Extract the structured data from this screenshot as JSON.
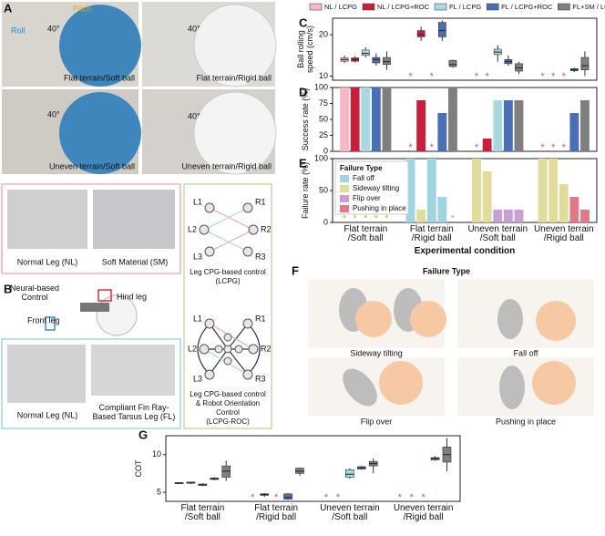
{
  "figure": {
    "panel_labels": [
      "A",
      "B",
      "C",
      "D",
      "E",
      "F",
      "G"
    ],
    "panel_a": {
      "pitch": "Pitch",
      "roll": "Roll",
      "angle": "40°",
      "photos": [
        "Flat terrain/Soft ball",
        "Flat terrain/Rigid ball",
        "Uneven terrain/Soft ball",
        "Uneven terrain/Rigid ball"
      ]
    },
    "panel_b": {
      "soft_photos": [
        "Normal Leg (NL)",
        "Soft Material (SM)"
      ],
      "control": "Neural-based\nControl",
      "hind_leg": "Hind leg",
      "front_leg": "Front leg",
      "leg_photos": [
        "Normal Leg (NL)",
        "Compliant Fin Ray-\nBased Tarsus Leg (FL)"
      ],
      "legs": [
        "L1",
        "R1",
        "L2",
        "R2",
        "L3",
        "R3"
      ],
      "lcpg": "Leg CPG-based control\n(LCPG)",
      "lcpg_roc": "Leg CPG-based control\n& Robot Orientation Control\n(LCPG-ROC)"
    },
    "panel_f": {
      "title": "Failure Type",
      "labels": [
        "Sideway tilting",
        "Fall off",
        "Flip over",
        "Pushing in place"
      ]
    }
  },
  "chart_data": [
    {
      "type": "box",
      "ylabel": "Ball rolling\nspeed (cm/s)",
      "ylim": [
        9,
        24
      ],
      "yticks": [
        10,
        20
      ],
      "missing_marker": "*",
      "missing_color": "#e0506a",
      "legend": "top",
      "series": [
        {
          "name": "NL / LCPG",
          "color": "#f4b8c6",
          "min": [
            13.2,
            null,
            null,
            null
          ],
          "q1": [
            13.6,
            null,
            null,
            null
          ],
          "median": [
            14,
            null,
            null,
            null
          ],
          "q3": [
            14.4,
            null,
            null,
            null
          ],
          "max": [
            15,
            null,
            null,
            null
          ]
        },
        {
          "name": "NL / LCPG+ROC",
          "color": "#c8203c",
          "min": [
            13.3,
            18.5,
            null,
            null
          ],
          "q1": [
            13.6,
            19.5,
            null,
            null
          ],
          "median": [
            14,
            20,
            null,
            null
          ],
          "q3": [
            14.4,
            21,
            null,
            null
          ],
          "max": [
            14.8,
            22,
            null,
            null
          ]
        },
        {
          "name": "FL / LCPG",
          "color": "#a8d8e0",
          "min": [
            14.5,
            null,
            13.5,
            null
          ],
          "q1": [
            15,
            null,
            15.2,
            null
          ],
          "median": [
            15.5,
            null,
            15.8,
            null
          ],
          "q3": [
            16.3,
            null,
            16.5,
            null
          ],
          "max": [
            17,
            null,
            17.5,
            null
          ]
        },
        {
          "name": "FL / LCPG+ROC",
          "color": "#4a6fb5",
          "min": [
            12.5,
            18.5,
            12.5,
            11
          ],
          "q1": [
            13.2,
            19.5,
            13,
            11.3
          ],
          "median": [
            14,
            21,
            13.5,
            11.5
          ],
          "q3": [
            14.5,
            23,
            14,
            11.8
          ],
          "max": [
            15.5,
            23.5,
            15,
            12
          ]
        },
        {
          "name": "FL+SM / LCPG+ROC",
          "color": "#7f7f7f",
          "min": [
            11.5,
            12,
            10.5,
            10
          ],
          "q1": [
            12.8,
            12.3,
            11.2,
            11.5
          ],
          "median": [
            13.5,
            12.8,
            12,
            12.5
          ],
          "q3": [
            14.5,
            13.8,
            13,
            14.5
          ],
          "max": [
            16,
            14,
            13.5,
            16
          ]
        }
      ]
    },
    {
      "type": "bar",
      "ylabel": "Success rate (%)",
      "ylim": [
        0,
        100
      ],
      "yticks": [
        0,
        25,
        50,
        75,
        100
      ],
      "missing_marker": "*",
      "missing_color": "#e0506a",
      "series": [
        {
          "color": "#f4b8c6",
          "values": [
            100,
            0,
            0,
            0
          ]
        },
        {
          "color": "#c8203c",
          "values": [
            100,
            80,
            20,
            0
          ]
        },
        {
          "color": "#a8d8e0",
          "values": [
            100,
            0,
            80,
            0
          ]
        },
        {
          "color": "#4a6fb5",
          "values": [
            100,
            60,
            80,
            60
          ]
        },
        {
          "color": "#7f7f7f",
          "values": [
            100,
            100,
            80,
            80
          ]
        }
      ]
    },
    {
      "type": "stacked_bar",
      "ylabel": "Failure rate (%)",
      "ylim": [
        0,
        100
      ],
      "yticks": [
        0,
        50,
        100
      ],
      "categories": [
        "Flat terrain\n/Soft ball",
        "Flat terrain\n/Rigid ball",
        "Uneven terrain\n/Soft ball",
        "Uneven terrain\n/Rigid ball"
      ],
      "xlabel": "Experimental condition",
      "legend_title": "Failure Type",
      "legend": "upper left",
      "missing_marker": "*",
      "missing_color": "#a8c83c",
      "series": [
        {
          "name": "Fall off",
          "color": "#9fd4e0",
          "values": [
            [
              0,
              0,
              0,
              0,
              0
            ],
            [
              100,
              0,
              100,
              40,
              0
            ],
            [
              0,
              0,
              0,
              0,
              0
            ],
            [
              0,
              0,
              0,
              0,
              0
            ]
          ]
        },
        {
          "name": "Sideway tilting",
          "color": "#e0dc9c",
          "values": [
            [
              0,
              0,
              0,
              0,
              0
            ],
            [
              0,
              20,
              0,
              0,
              0
            ],
            [
              100,
              80,
              0,
              0,
              0
            ],
            [
              100,
              100,
              60,
              0,
              0
            ]
          ]
        },
        {
          "name": "Flip over",
          "color": "#c9a0d6",
          "values": [
            [
              0,
              0,
              0,
              0,
              0
            ],
            [
              0,
              0,
              0,
              0,
              0
            ],
            [
              0,
              0,
              20,
              20,
              20
            ],
            [
              0,
              0,
              0,
              0,
              0
            ]
          ]
        },
        {
          "name": "Pushing in place",
          "color": "#e07a8a",
          "values": [
            [
              0,
              0,
              0,
              0,
              0
            ],
            [
              0,
              0,
              0,
              0,
              0
            ],
            [
              0,
              0,
              0,
              0,
              0
            ],
            [
              0,
              0,
              0,
              40,
              20
            ]
          ]
        }
      ]
    },
    {
      "type": "box",
      "ylabel": "COT",
      "ylim": [
        3.8,
        12.5
      ],
      "yticks": [
        5,
        10
      ],
      "categories": [
        "Flat terrain\n/Soft ball",
        "Flat terrain\n/Rigid ball",
        "Uneven terrain\n/Soft ball",
        "Uneven terrain\n/Rigid ball"
      ],
      "missing_marker": "*",
      "missing_color": "#e0506a",
      "series": [
        {
          "color": "#f4b8c6",
          "min": [
            6.1,
            null,
            null,
            null
          ],
          "q1": [
            6.15,
            null,
            null,
            null
          ],
          "median": [
            6.2,
            null,
            null,
            null
          ],
          "q3": [
            6.3,
            null,
            null,
            null
          ],
          "max": [
            6.35,
            null,
            null,
            null
          ]
        },
        {
          "color": "#c8203c",
          "min": [
            6.1,
            4.4,
            null,
            null
          ],
          "q1": [
            6.2,
            4.6,
            null,
            null
          ],
          "median": [
            6.3,
            4.7,
            null,
            null
          ],
          "q3": [
            6.35,
            4.8,
            null,
            null
          ],
          "max": [
            6.4,
            4.9,
            null,
            null
          ]
        },
        {
          "color": "#a8d8e0",
          "min": [
            5.8,
            null,
            6.8,
            null
          ],
          "q1": [
            5.9,
            null,
            7.0,
            null
          ],
          "median": [
            6.0,
            null,
            7.4,
            null
          ],
          "q3": [
            6.1,
            null,
            8.0,
            null
          ],
          "max": [
            6.2,
            null,
            8.2,
            null
          ]
        },
        {
          "color": "#4a6fb5",
          "min": [
            6.6,
            4.0,
            8.0,
            9.2
          ],
          "q1": [
            6.7,
            4.1,
            8.1,
            9.3
          ],
          "median": [
            6.8,
            4.3,
            8.2,
            9.5
          ],
          "q3": [
            6.9,
            4.8,
            8.4,
            9.6
          ],
          "max": [
            7.0,
            4.9,
            8.5,
            9.8
          ]
        },
        {
          "color": "#7f7f7f",
          "min": [
            6.5,
            7.2,
            7.5,
            7.8
          ],
          "q1": [
            7.0,
            7.5,
            8.5,
            9.0
          ],
          "median": [
            7.8,
            7.8,
            8.8,
            10
          ],
          "q3": [
            8.5,
            8.2,
            9.1,
            11
          ],
          "max": [
            9.2,
            8.3,
            9.5,
            12.2
          ]
        }
      ]
    }
  ]
}
